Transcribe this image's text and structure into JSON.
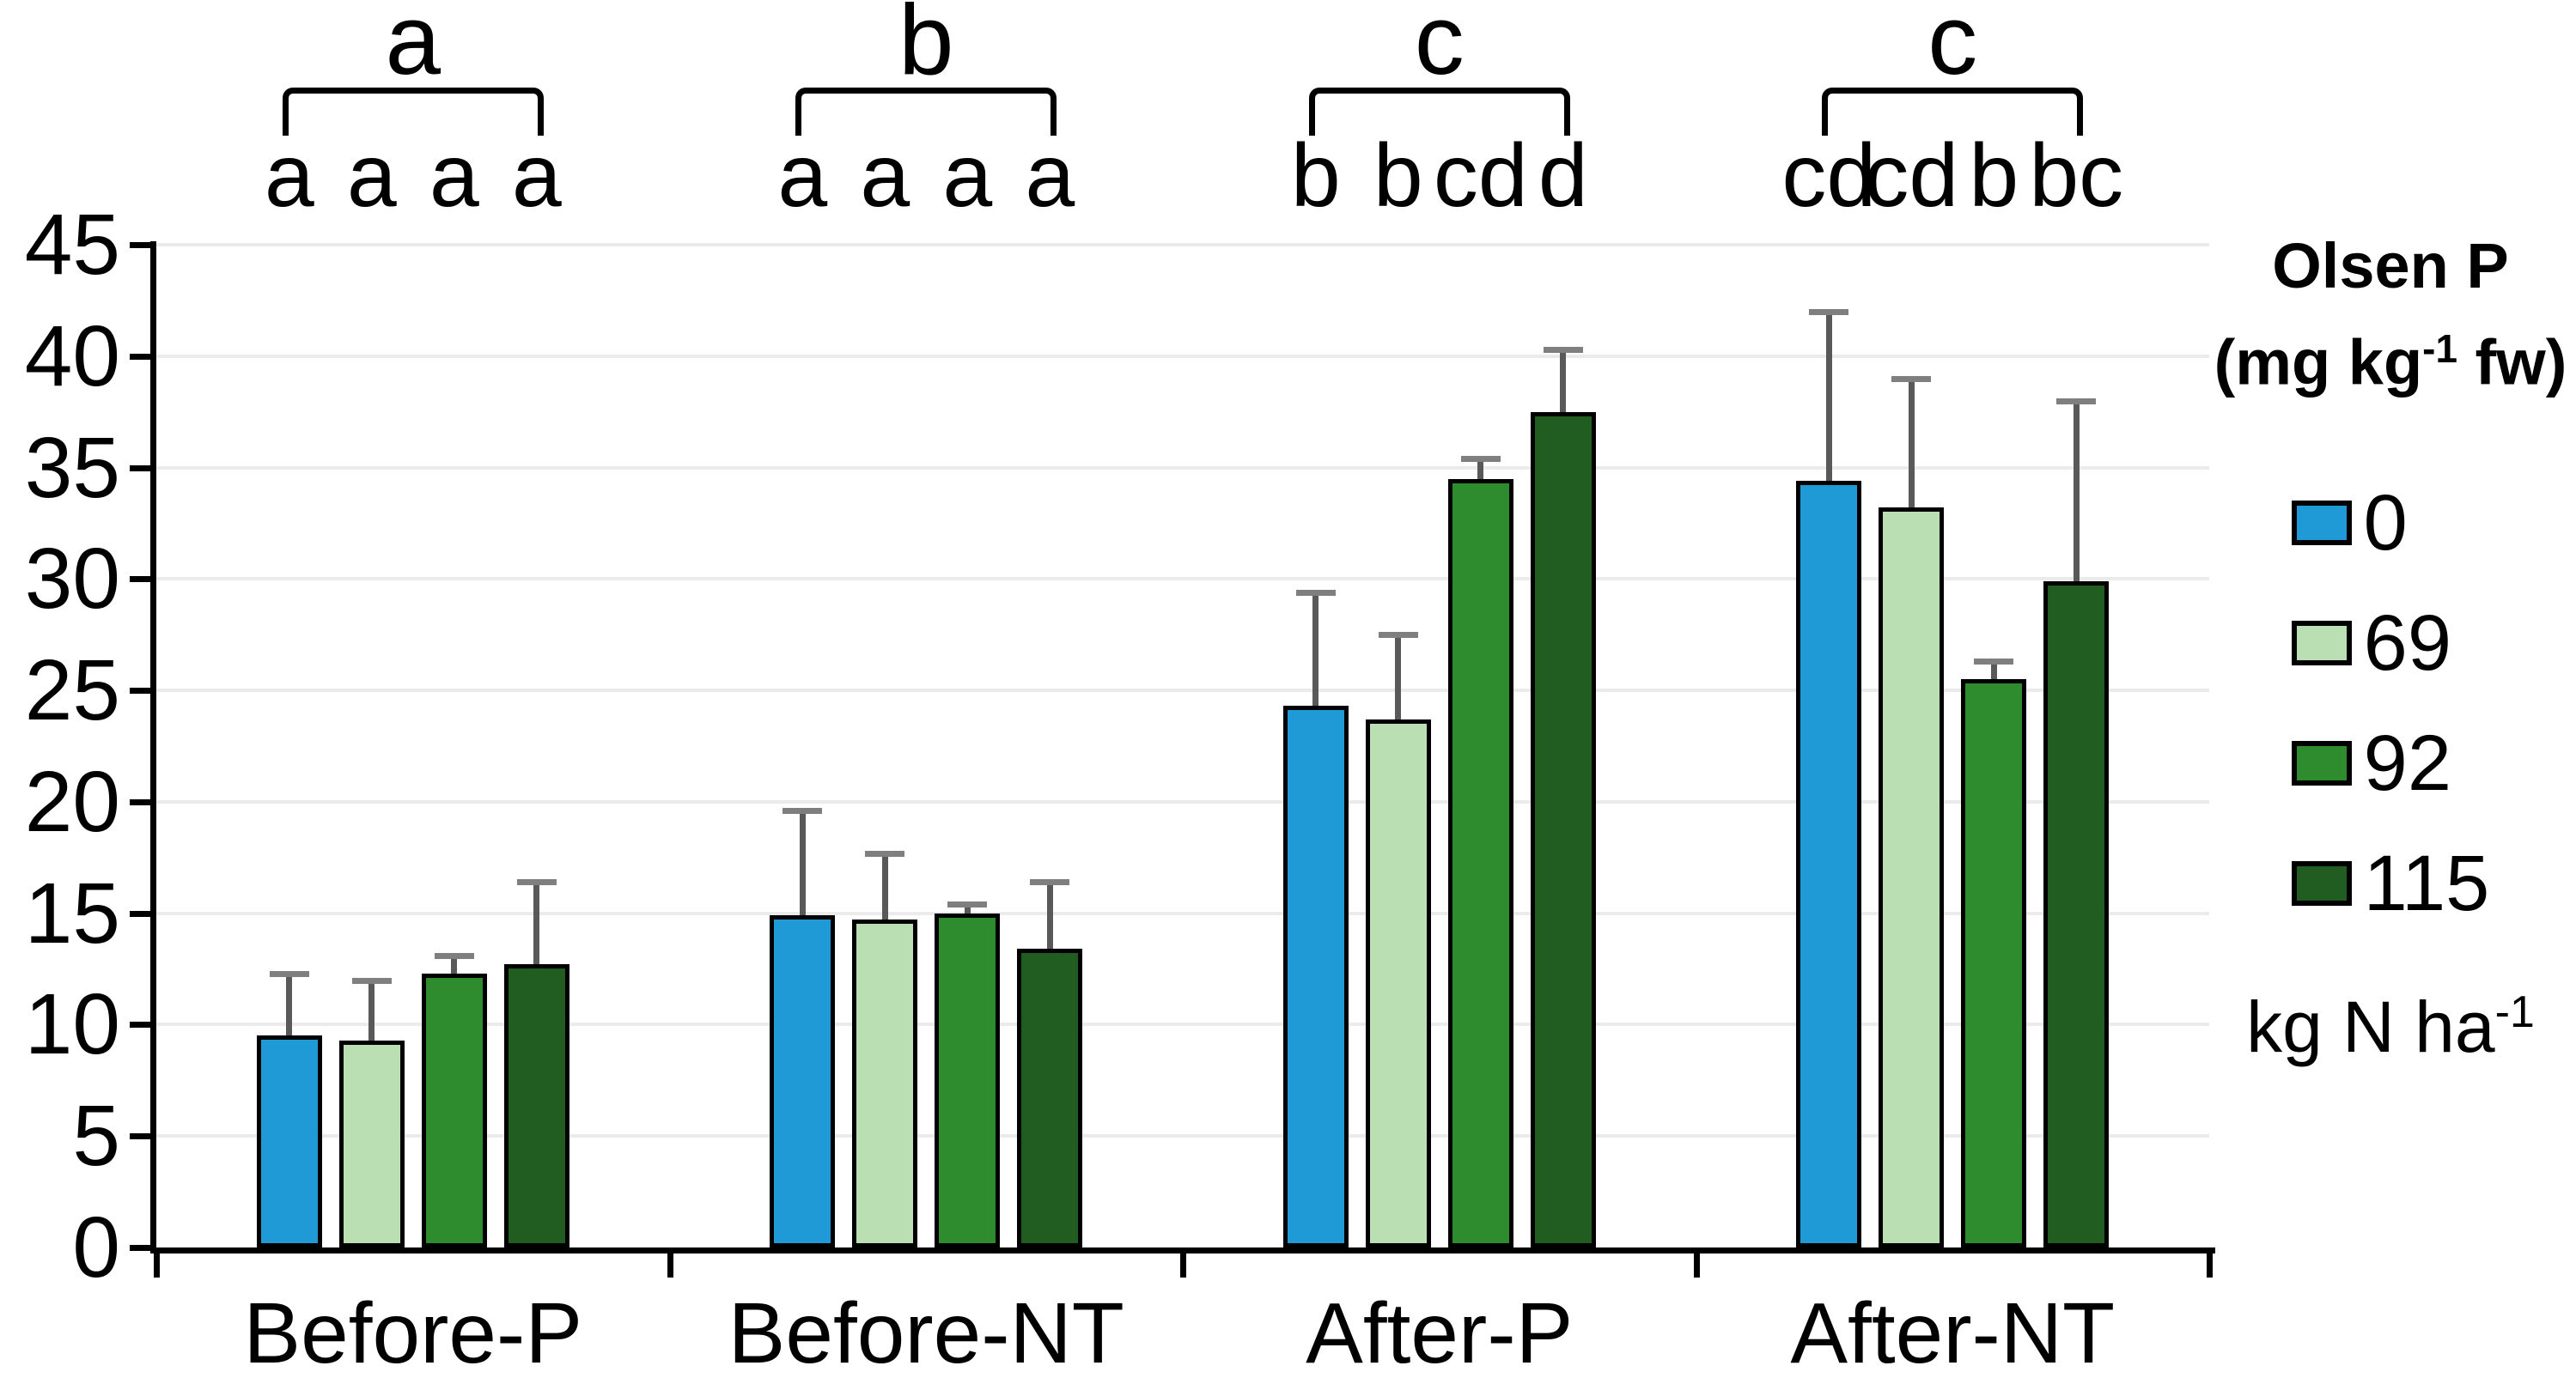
{
  "chart_data": {
    "type": "bar",
    "title": "",
    "categories": [
      "Before-P",
      "Before-NT",
      "After-P",
      "After-NT"
    ],
    "series": [
      {
        "name": "0",
        "color": "#1F9AD7",
        "values": [
          9.5,
          14.9,
          24.3,
          34.4
        ],
        "errors_up": [
          2.8,
          4.7,
          5.1,
          7.6
        ]
      },
      {
        "name": "69",
        "color": "#B9DFB3",
        "values": [
          9.3,
          14.7,
          23.7,
          33.2
        ],
        "errors_up": [
          2.7,
          3.0,
          3.8,
          5.8
        ]
      },
      {
        "name": "92",
        "color": "#2E8C2E",
        "values": [
          12.3,
          15.0,
          34.5,
          25.5
        ],
        "errors_up": [
          0.8,
          0.4,
          0.9,
          0.8
        ]
      },
      {
        "name": "115",
        "color": "#215D21",
        "values": [
          12.7,
          13.4,
          37.5,
          29.9
        ],
        "errors_up": [
          3.7,
          3.0,
          2.8,
          8.1
        ]
      }
    ],
    "bar_letters": [
      [
        "a",
        "a",
        "a",
        "a"
      ],
      [
        "a",
        "a",
        "a",
        "a"
      ],
      [
        "b",
        "b",
        "cd",
        "d"
      ],
      [
        "cd",
        "cd",
        "b",
        "bc"
      ]
    ],
    "group_letters": [
      "a",
      "b",
      "c",
      "c"
    ],
    "y_axis": {
      "min": 0,
      "max": 45,
      "step": 5,
      "tick_labels": [
        "0",
        "5",
        "10",
        "15",
        "20",
        "25",
        "30",
        "35",
        "40",
        "45"
      ]
    },
    "grid": true,
    "legend_position": "right",
    "ylabel": "Olsen P (mg kg-1 fw)",
    "series_unit": "kg N ha-1"
  },
  "legend": {
    "title_line1": "Olsen P",
    "title_line2_pre": "(mg kg",
    "title_line2_sup": "-1",
    "title_line2_post": " fw)",
    "note_pre": "kg N ha",
    "note_sup": "-1"
  },
  "colors": {
    "axis": "#000000",
    "gridline": "#EBEBEB",
    "error_stem": "#595959",
    "error_cap": "#7F7F7F"
  }
}
